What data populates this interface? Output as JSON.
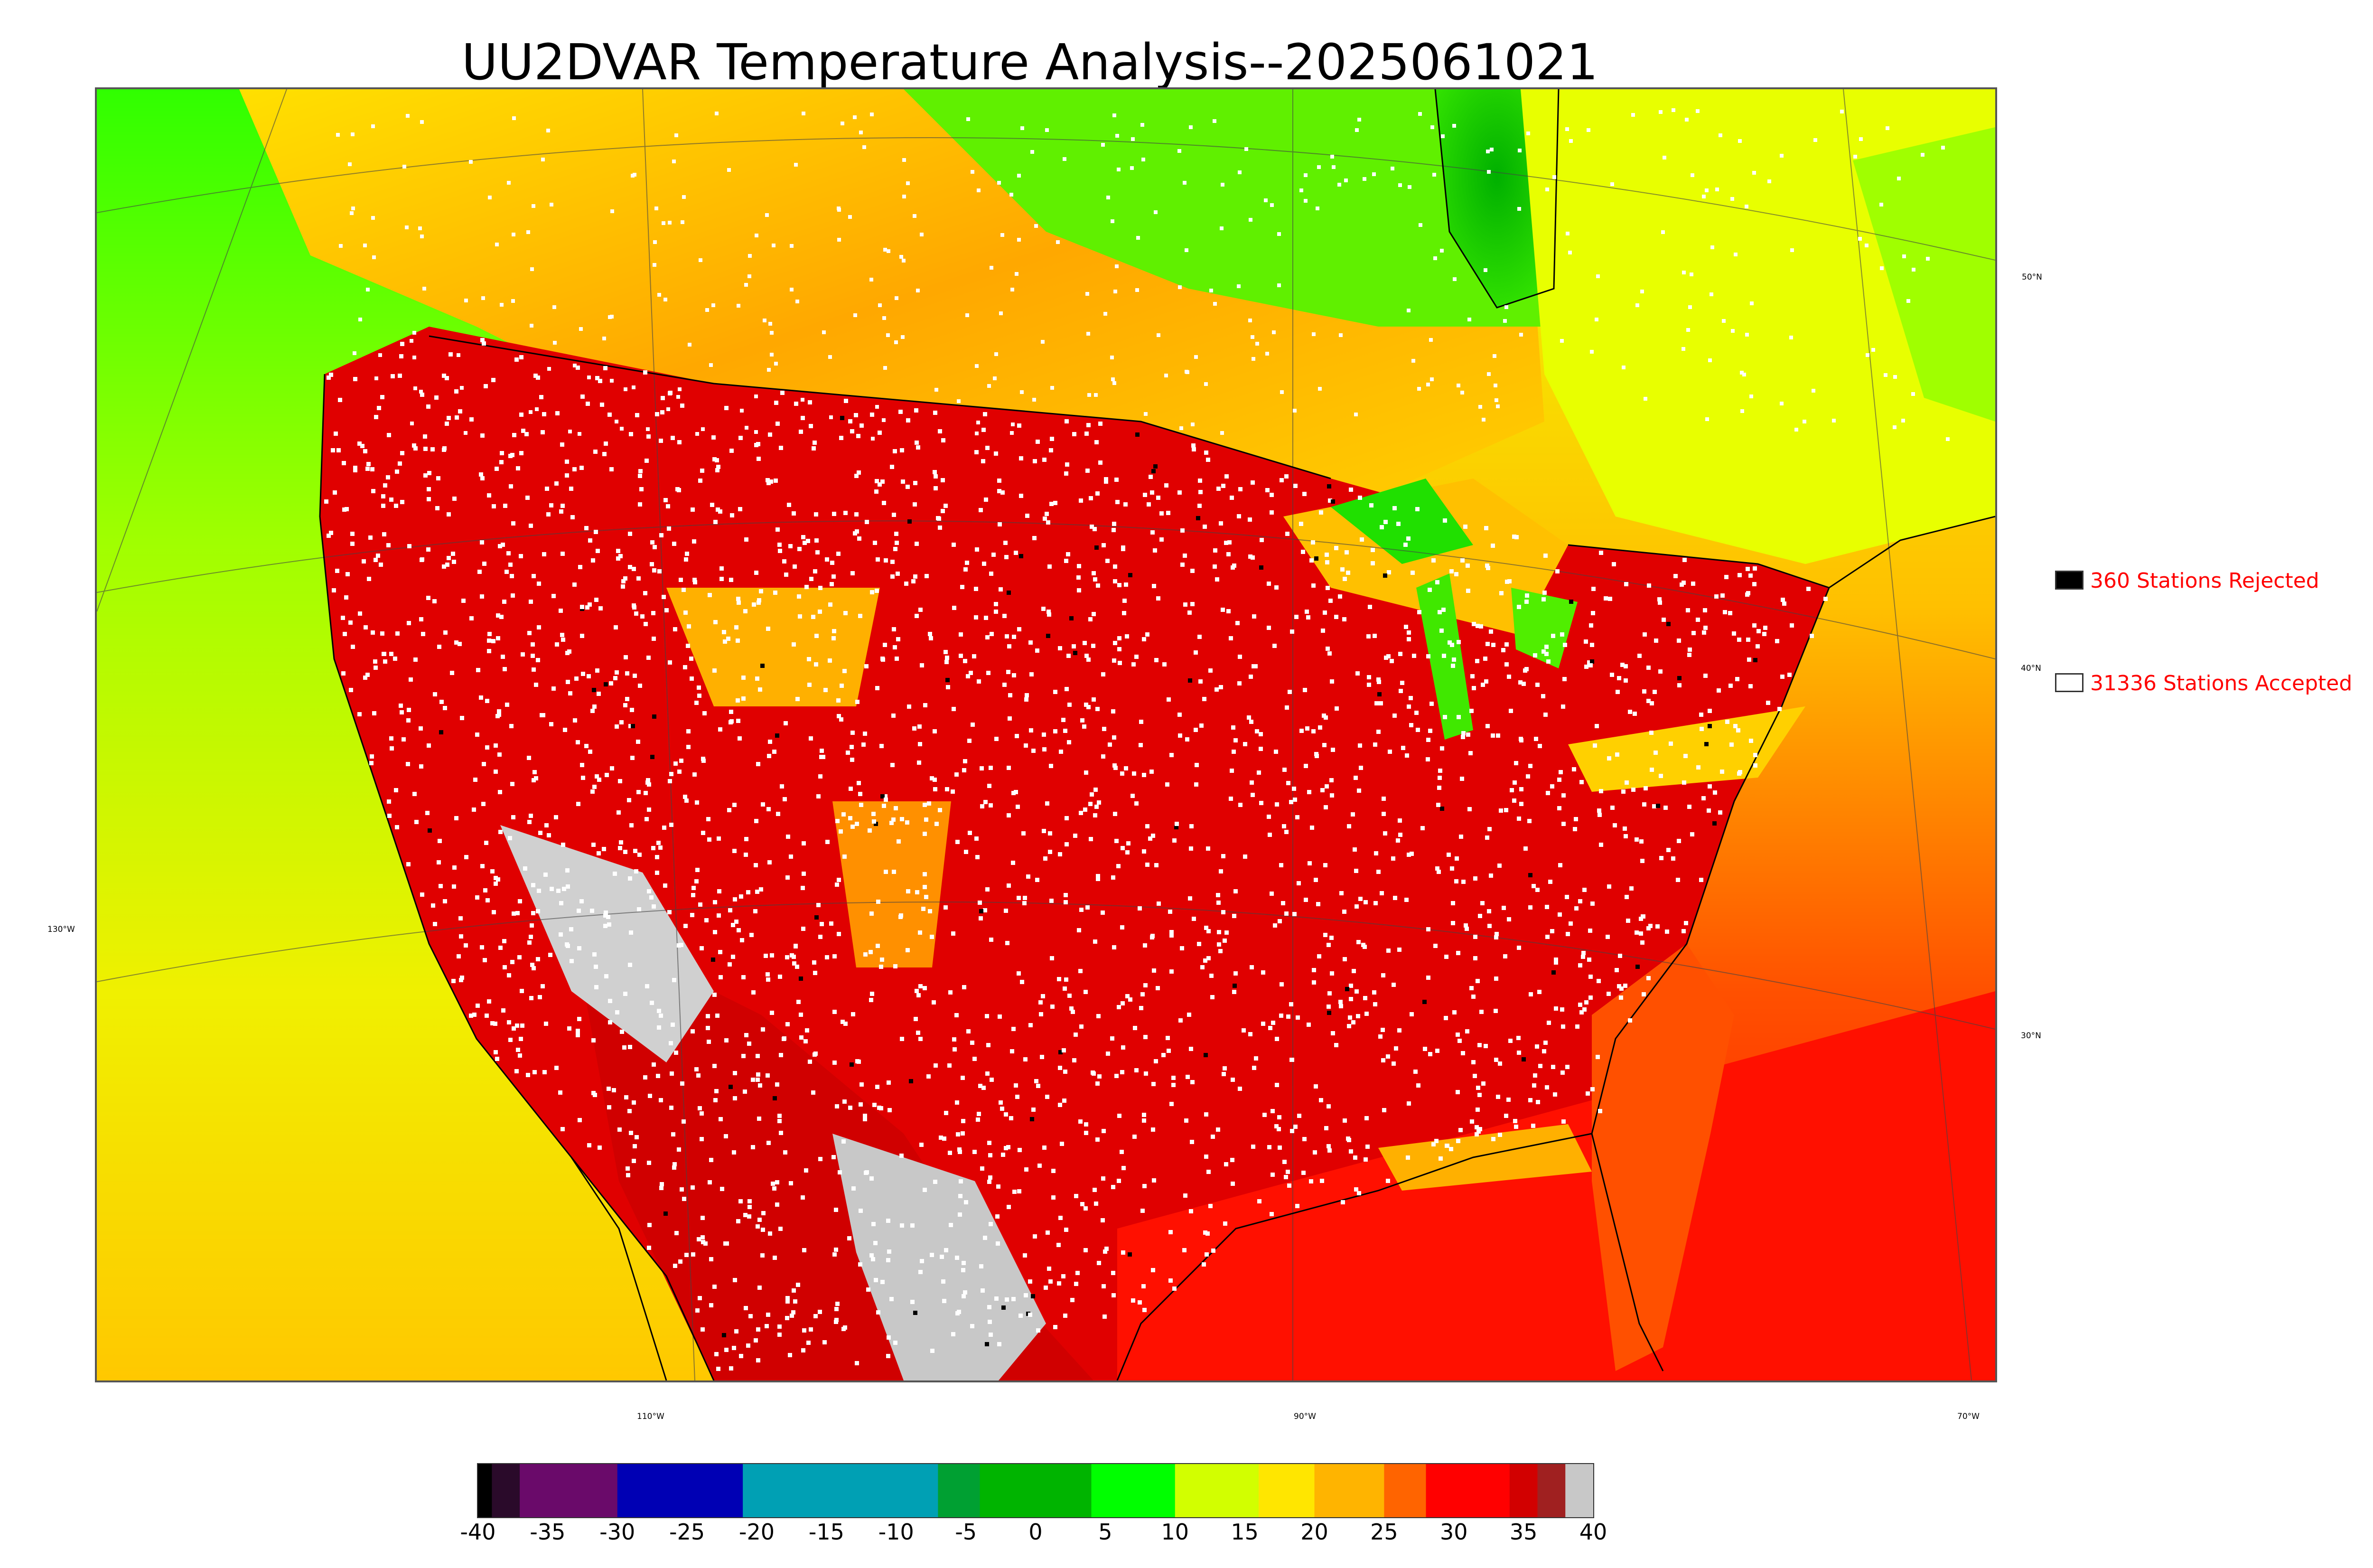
{
  "title": "UU2DVAR Temperature Analysis--2025061021",
  "legend": {
    "rejected": {
      "label": "360 Stations Rejected",
      "swatch_color": "#000000"
    },
    "accepted": {
      "label": "31336 Stations Accepted",
      "swatch_color": "#ffffff"
    }
  },
  "axes": {
    "longitude_labels": [
      "130°W",
      "110°W",
      "90°W",
      "70°W"
    ],
    "latitude_labels": [
      "50°N",
      "40°N",
      "30°N"
    ]
  },
  "colorbar": {
    "min": -40,
    "max": 40,
    "tick_labels": [
      "-40",
      "-35",
      "-30",
      "-25",
      "-20",
      "-15",
      "-10",
      "-5",
      "0",
      "5",
      "10",
      "15",
      "20",
      "25",
      "30",
      "35",
      "40"
    ],
    "stops": [
      {
        "from": -40,
        "to": -39,
        "color": "#000000"
      },
      {
        "from": -39,
        "to": -37,
        "color": "#2a0a2a"
      },
      {
        "from": -37,
        "to": -30,
        "color": "#6a0a6a"
      },
      {
        "from": -30,
        "to": -21,
        "color": "#0000b4"
      },
      {
        "from": -21,
        "to": -7,
        "color": "#00a0b4"
      },
      {
        "from": -7,
        "to": -4,
        "color": "#00a032"
      },
      {
        "from": -4,
        "to": 4,
        "color": "#00b400"
      },
      {
        "from": 4,
        "to": 10,
        "color": "#00ff00"
      },
      {
        "from": 10,
        "to": 16,
        "color": "#d2ff00"
      },
      {
        "from": 16,
        "to": 20,
        "color": "#ffe600"
      },
      {
        "from": 20,
        "to": 25,
        "color": "#ffb400"
      },
      {
        "from": 25,
        "to": 28,
        "color": "#ff6400"
      },
      {
        "from": 28,
        "to": 34,
        "color": "#ff0000"
      },
      {
        "from": 34,
        "to": 36,
        "color": "#d20000"
      },
      {
        "from": 36,
        "to": 38,
        "color": "#a02020"
      },
      {
        "from": 38,
        "to": 40,
        "color": "#c8c8c8"
      }
    ]
  },
  "colors": {
    "ocean_cool": "#7fd400",
    "canada_warm": "#ffb000",
    "us_hot": "#e00000",
    "gulf_ocean": "#ff1a00",
    "great_lakes": "#20e000",
    "hudson_bay": "#00c000",
    "desert_hot": "#c8c8c8",
    "station_accepted": "#ffffff",
    "station_rejected": "#000000"
  }
}
